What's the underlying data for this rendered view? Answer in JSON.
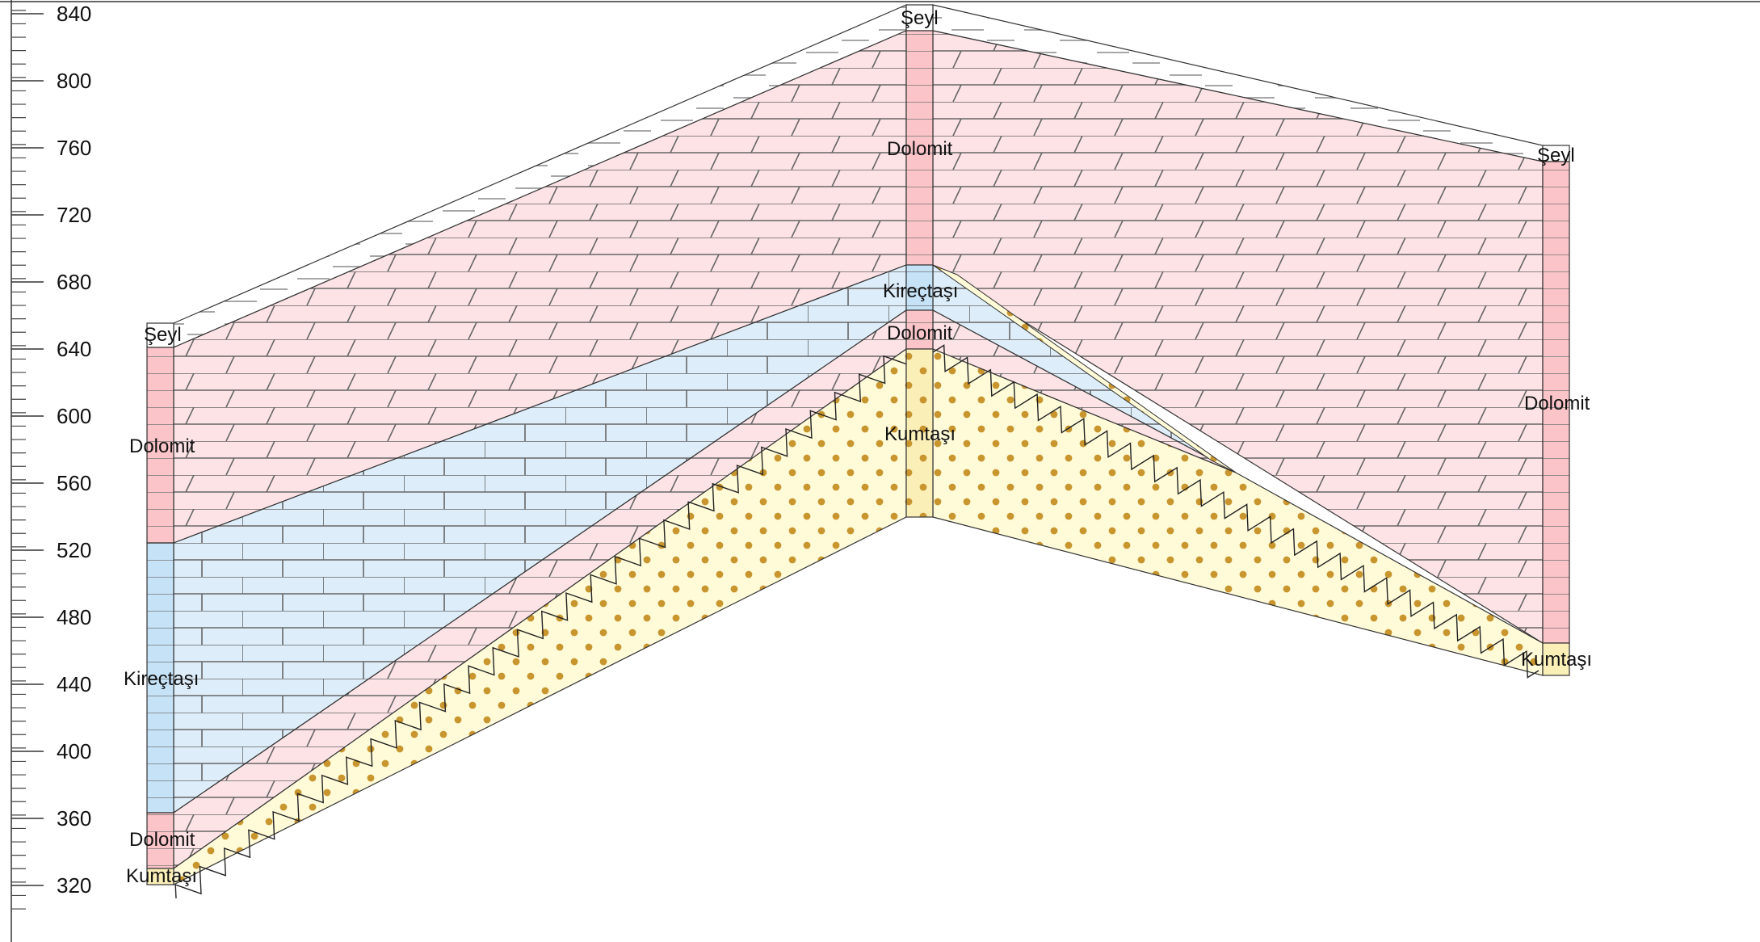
{
  "axis": {
    "ticks": [
      840,
      800,
      760,
      720,
      680,
      640,
      600,
      560,
      520,
      480,
      440,
      400,
      360,
      320
    ]
  },
  "colors": {
    "dolomite": "#fde3e6",
    "dolomite_column": "#fbc4c8",
    "limestone": "#ddeefa",
    "limestone_column": "#c5e2f7",
    "sandstone": "#fffbd9",
    "sandstone_column": "#fbefb8",
    "sand_dots": "#c9952e",
    "brick_lines": "#555555",
    "shale": "#ffffff"
  },
  "labels": {
    "left_seyl": "Şeyl",
    "left_dolomit_top": "Dolomit",
    "left_kirectasi": "Kireçtaşı",
    "left_dolomit_bottom": "Dolomit",
    "left_kumtasi": "Kumtaşı",
    "mid_seyl": "Şeyl",
    "mid_dolomit_top": "Dolomit",
    "mid_kirectasi": "Kireçtaşı",
    "mid_dolomit_bottom": "Dolomit",
    "mid_kumtasi": "Kumtaşı",
    "right_seyl": "Şeyl",
    "right_dolomit": "Dolomit",
    "right_kumtasi": "Kumtaşı"
  }
}
